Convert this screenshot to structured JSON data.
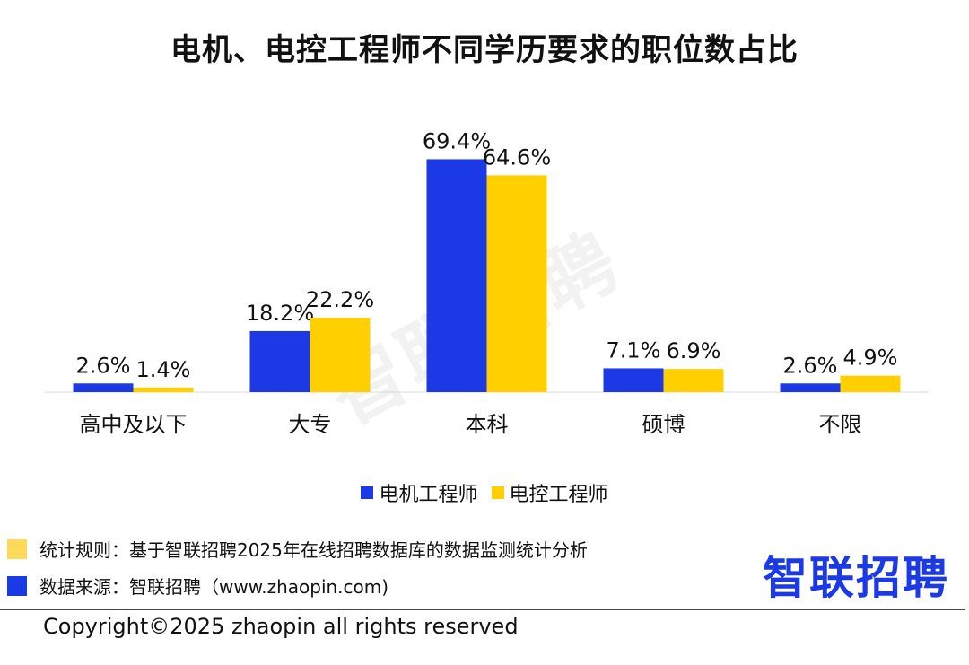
{
  "chart_data": {
    "type": "bar",
    "title": "电机、电控工程师不同学历要求的职位数占比",
    "categories": [
      "高中及以下",
      "大专",
      "本科",
      "硕博",
      "不限"
    ],
    "series": [
      {
        "name": "电机工程师",
        "color": "#1b3ae6",
        "values": [
          2.6,
          18.2,
          69.4,
          7.1,
          2.6
        ],
        "labels": [
          "2.6%",
          "18.2%",
          "69.4%",
          "7.1%",
          "2.6%"
        ]
      },
      {
        "name": "电控工程师",
        "color": "#ffcf00",
        "values": [
          1.4,
          22.2,
          64.6,
          6.9,
          4.9
        ],
        "labels": [
          "1.4%",
          "22.2%",
          "64.6%",
          "6.9%",
          "4.9%"
        ]
      }
    ],
    "ylim": [
      0,
      72
    ],
    "xlabel": "",
    "ylabel": "",
    "grid": false,
    "legend": "bottom-center"
  },
  "watermark": "智联招聘",
  "footer": {
    "rule": {
      "text": "统计规则：基于智联招聘2025年在线招聘数据库的数据监测统计分析",
      "color": "#ffd95a"
    },
    "source": {
      "text": "数据来源：智联招聘（www.zhaopin.com)",
      "color": "#1b3ae6"
    },
    "logo": "智联招聘",
    "copyright": "Copyright©2025 zhaopin all rights reserved"
  }
}
